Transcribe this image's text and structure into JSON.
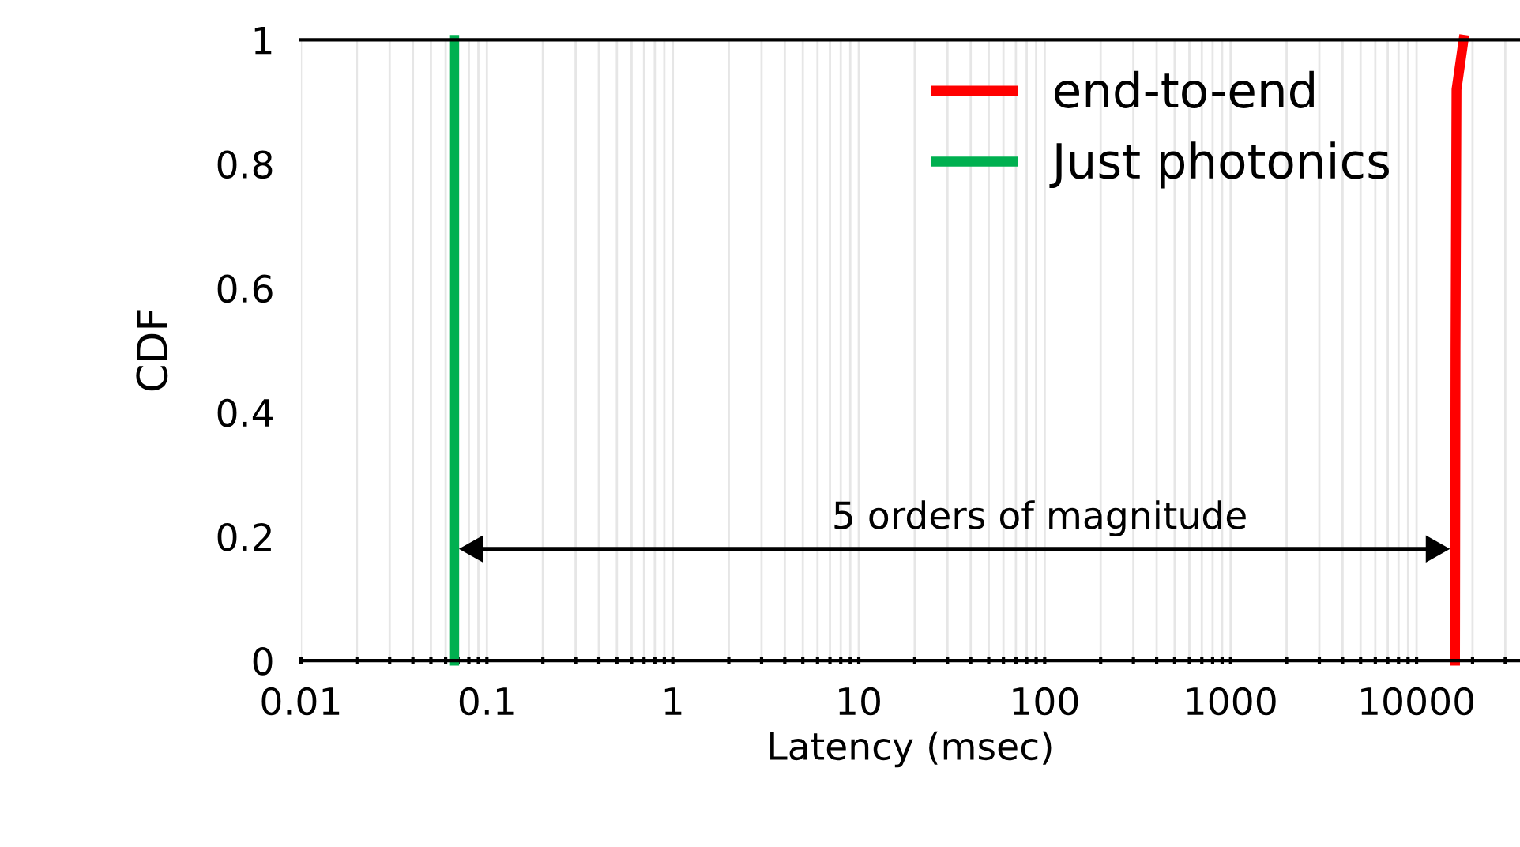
{
  "chart_data": {
    "type": "line",
    "xlabel": "Latency (msec)",
    "ylabel": "CDF",
    "log": "x",
    "xlim": [
      0.01,
      36000
    ],
    "ylim": [
      0,
      1
    ],
    "xticks": [
      0.01,
      0.1,
      1,
      10,
      100,
      1000,
      10000,
      {
        "value": 0.02,
        "label": null
      },
      {
        "value": 0.03,
        "label": null
      },
      {
        "value": 0.04,
        "label": null
      },
      {
        "value": 0.05,
        "label": null
      },
      {
        "value": 0.06,
        "label": null
      },
      {
        "value": 0.07,
        "label": null
      },
      {
        "value": 0.08,
        "label": null
      },
      {
        "value": 0.09,
        "label": null
      },
      {
        "value": 0.2,
        "label": null
      },
      {
        "value": 0.3,
        "label": null
      },
      {
        "value": 0.4,
        "label": null
      },
      {
        "value": 0.5,
        "label": null
      },
      {
        "value": 0.6,
        "label": null
      },
      {
        "value": 0.7,
        "label": null
      },
      {
        "value": 0.8,
        "label": null
      },
      {
        "value": 0.9,
        "label": null
      },
      {
        "value": 2,
        "label": null
      },
      {
        "value": 3,
        "label": null
      },
      {
        "value": 4,
        "label": null
      },
      {
        "value": 5,
        "label": null
      },
      {
        "value": 6,
        "label": null
      },
      {
        "value": 7,
        "label": null
      },
      {
        "value": 8,
        "label": null
      },
      {
        "value": 9,
        "label": null
      },
      {
        "value": 20,
        "label": null
      },
      {
        "value": 30,
        "label": null
      },
      {
        "value": 40,
        "label": null
      },
      {
        "value": 50,
        "label": null
      },
      {
        "value": 60,
        "label": null
      },
      {
        "value": 70,
        "label": null
      },
      {
        "value": 80,
        "label": null
      },
      {
        "value": 90,
        "label": null
      },
      {
        "value": 200,
        "label": null
      },
      {
        "value": 300,
        "label": null
      },
      {
        "value": 400,
        "label": null
      },
      {
        "value": 500,
        "label": null
      },
      {
        "value": 600,
        "label": null
      },
      {
        "value": 700,
        "label": null
      },
      {
        "value": 800,
        "label": null
      },
      {
        "value": 900,
        "label": null
      },
      {
        "value": 2000,
        "label": null
      },
      {
        "value": 3000,
        "label": null
      },
      {
        "value": 4000,
        "label": null
      },
      {
        "value": 5000,
        "label": null
      },
      {
        "value": 6000,
        "label": null
      },
      {
        "value": 7000,
        "label": null
      },
      {
        "value": 8000,
        "label": null
      },
      {
        "value": 9000,
        "label": null
      },
      {
        "value": 20000,
        "label": null
      },
      {
        "value": 30000,
        "label": null
      }
    ],
    "yticks": [
      0,
      0.2,
      0.4,
      0.6,
      0.8,
      1
    ],
    "grid": "x",
    "legend": "top right",
    "marker": "none",
    "line_style": "solid",
    "series": [
      {
        "name": "end-to-end",
        "color": "#ff0000",
        "x": [
          16100,
          16200,
          16400,
          17900
        ],
        "values": [
          0,
          0.5,
          0.92,
          1
        ]
      },
      {
        "name": "Just photonics",
        "color": "#00b050",
        "x": [
          0.0667,
          0.0667
        ],
        "values": [
          0,
          1
        ]
      }
    ],
    "annotations": [
      "5 orders of magnitude"
    ]
  }
}
